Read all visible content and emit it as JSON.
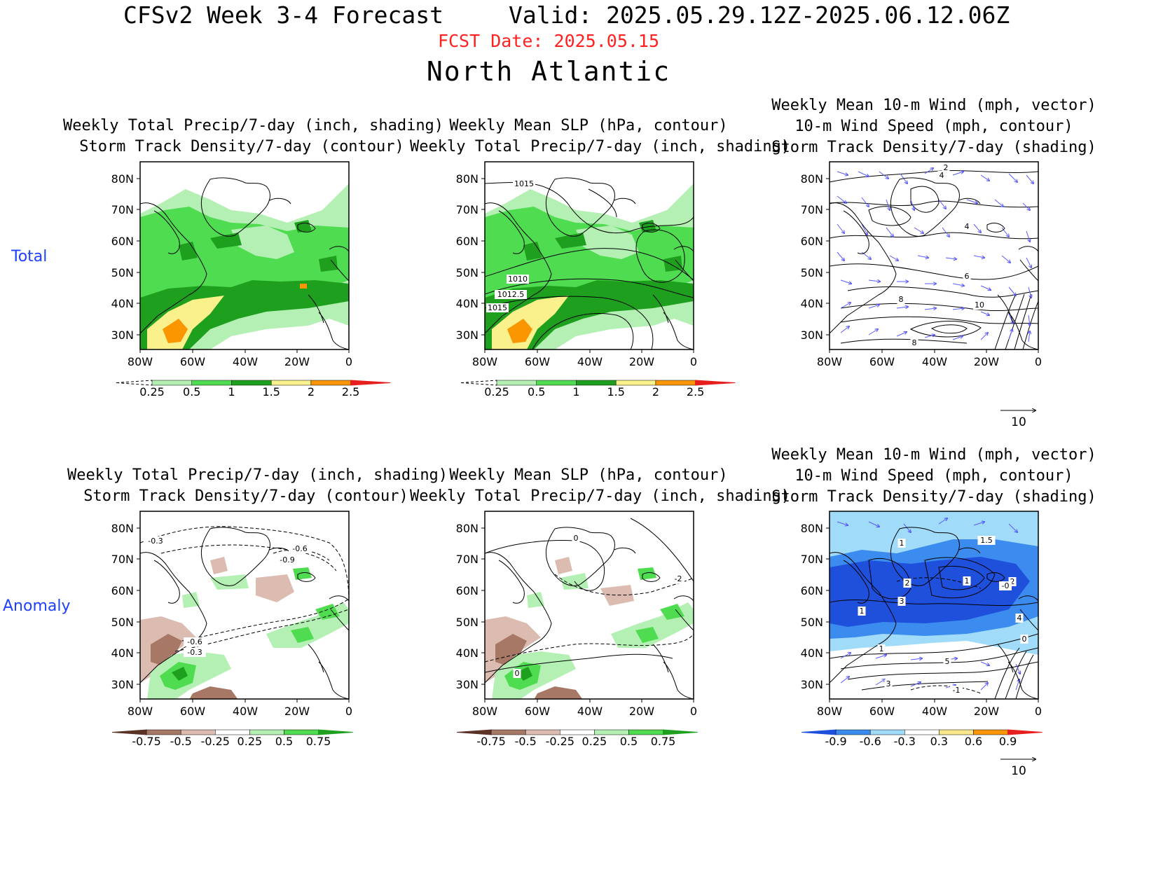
{
  "header": {
    "title": "CFSv2 Week 3-4 Forecast",
    "valid": "Valid: 2025.05.29.12Z-2025.06.12.06Z",
    "fcst_date": "FCST Date: 2025.05.15",
    "region": "North Atlantic"
  },
  "rows": {
    "total": "Total",
    "anomaly": "Anomaly"
  },
  "panel_titles": {
    "precip": [
      "Weekly Total Precip/7-day (inch, shading)",
      "Storm Track Density/7-day (contour)"
    ],
    "slp": [
      "Weekly Mean SLP (hPa, contour)",
      "Weekly Total Precip/7-day (inch, shading)"
    ],
    "wind": [
      "Weekly Mean 10-m Wind (mph, vector)",
      "10-m Wind Speed (mph, contour)",
      "Storm Track Density/7-day (shading)"
    ]
  },
  "axes": {
    "lat_labels": [
      "80N",
      "70N",
      "60N",
      "50N",
      "40N",
      "30N"
    ],
    "lon_labels": [
      "80W",
      "60W",
      "40W",
      "20W",
      "0"
    ]
  },
  "colorbars": {
    "precip_total": {
      "labels": [
        "0.25",
        "0.5",
        "1",
        "1.5",
        "2",
        "2.5"
      ],
      "colors": [
        "#b4f0b4",
        "#50dc50",
        "#1ea01e",
        "#faf08c",
        "#fa9600",
        "#e61e1e"
      ]
    },
    "precip_anom": {
      "labels": [
        "-0.75",
        "-0.5",
        "-0.25",
        "0.25",
        "0.5",
        "0.75"
      ],
      "colors": [
        "#5a3226",
        "#a87866",
        "#dcbcb0",
        "#ffffff",
        "#b4f0b4",
        "#50dc50",
        "#1ea01e"
      ]
    },
    "storm_anom": {
      "labels": [
        "-0.9",
        "-0.6",
        "-0.3",
        "0.3",
        "0.6",
        "0.9"
      ],
      "colors": [
        "#1e50dc",
        "#3c8cf0",
        "#a0dcfa",
        "#ffffff",
        "#fae68c",
        "#fa9600",
        "#e61e1e"
      ]
    }
  },
  "slp_labels": [
    "1015",
    "1010",
    "1012.5",
    "1015"
  ],
  "vector_ref": "10",
  "storm_contour_labels_total": [
    "2",
    "4",
    "4",
    "6",
    "8",
    "10",
    "8"
  ],
  "storm_contour_labels_anom": [
    "-0.3",
    "-0.6",
    "-0.9",
    "-0.6",
    "-0.3"
  ],
  "slp_anom_labels": [
    "0",
    "-2",
    "0"
  ],
  "wind_anom_labels": [
    "1",
    "1.5",
    "2",
    "1",
    "2",
    "-0",
    "3",
    "1",
    "4",
    "1",
    "0",
    "5",
    "3",
    "-1"
  ]
}
